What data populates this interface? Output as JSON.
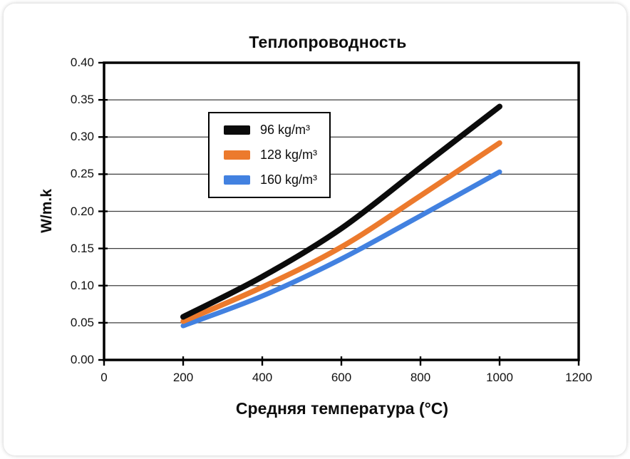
{
  "chart_data": {
    "type": "line",
    "title": "Теплопроводность",
    "xlabel": "Средняя температура (°C)",
    "ylabel": "W/m.k",
    "xlim": [
      0,
      1200
    ],
    "ylim": [
      0,
      0.4
    ],
    "x_ticks": [
      0,
      200,
      400,
      600,
      800,
      1000,
      1200
    ],
    "x_tick_labels": [
      "0",
      "200",
      "400",
      "600",
      "800",
      "1000",
      "1200"
    ],
    "y_ticks": [
      0.0,
      0.05,
      0.1,
      0.15,
      0.2,
      0.25,
      0.3,
      0.35,
      0.4
    ],
    "y_tick_labels": [
      "0.00",
      "0.05",
      "0.10",
      "0.15",
      "0.20",
      "0.25",
      "0.30",
      "0.35",
      "0.40"
    ],
    "grid": "horizontal",
    "legend_position": "upper-left-inside",
    "x": [
      200,
      400,
      600,
      800,
      1000
    ],
    "series": [
      {
        "name": "96 kg/m³",
        "color": "#0b0b0b",
        "line_width": 8,
        "values": [
          0.058,
          0.112,
          0.177,
          0.259,
          0.341
        ]
      },
      {
        "name": "128 kg/m³",
        "color": "#EC7A2D",
        "line_width": 7.5,
        "values": [
          0.052,
          0.098,
          0.152,
          0.221,
          0.292
        ]
      },
      {
        "name": "160 kg/m³",
        "color": "#4281E0",
        "line_width": 7,
        "values": [
          0.046,
          0.086,
          0.136,
          0.194,
          0.253
        ]
      }
    ]
  }
}
